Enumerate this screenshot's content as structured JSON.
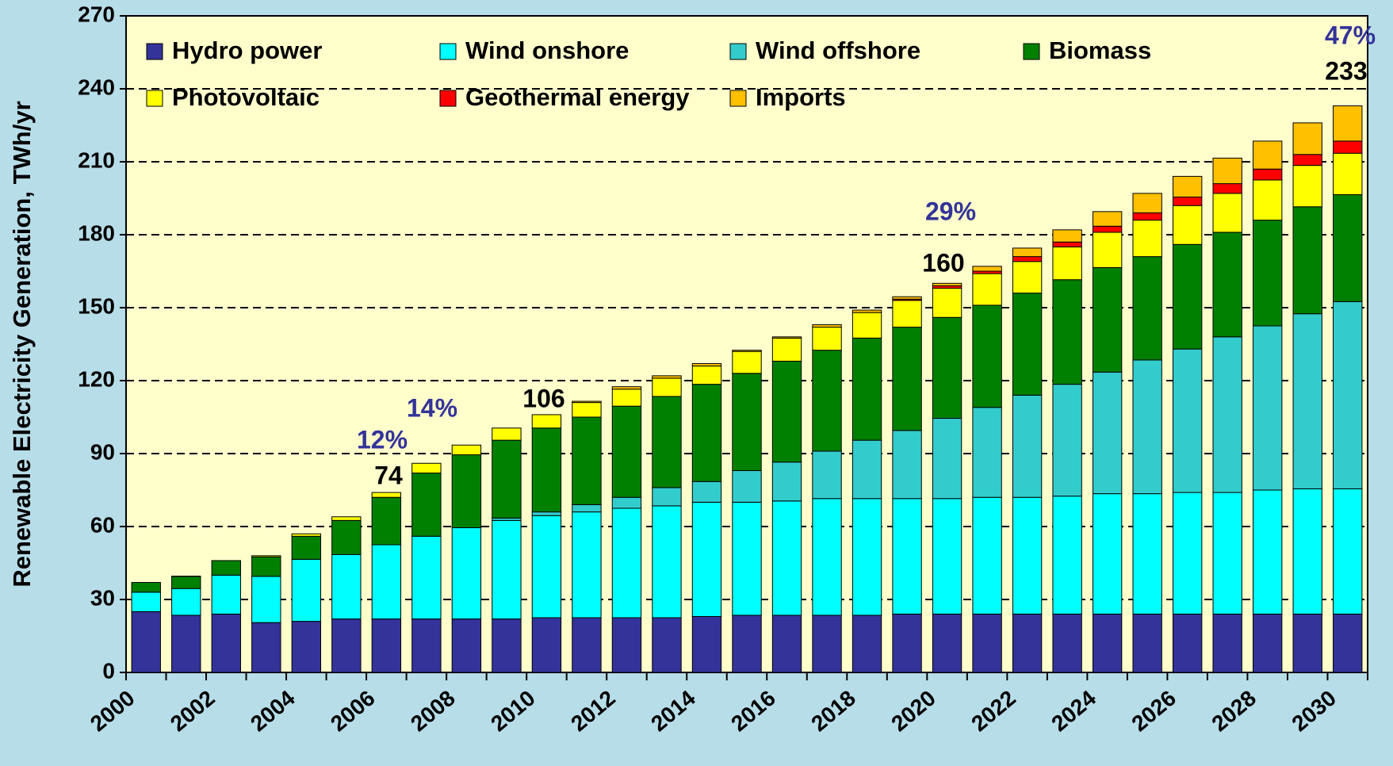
{
  "chart_data": {
    "type": "stacked_bar",
    "y_label": "Renewable Electricity Generation, TWh/yr",
    "categories": [
      "2000",
      null,
      "2002",
      null,
      "2004",
      null,
      "2006",
      null,
      "2008",
      null,
      "2010",
      null,
      "2012",
      null,
      "2014",
      null,
      "2016",
      null,
      "2018",
      null,
      "2020",
      null,
      "2022",
      null,
      "2024",
      null,
      "2026",
      null,
      "2028",
      null,
      "2030"
    ],
    "ylim": [
      0,
      270
    ],
    "yticks": [
      0,
      30,
      60,
      90,
      120,
      150,
      180,
      210,
      240,
      270
    ],
    "grid": true,
    "legend": "top-left",
    "series": [
      {
        "name": "Hydro power",
        "color": "#333399",
        "values": [
          25,
          23.5,
          24,
          20.5,
          21,
          22,
          22,
          22,
          22,
          22,
          22.5,
          22.5,
          22.5,
          22.5,
          23,
          23.5,
          23.5,
          23.5,
          23.5,
          24,
          24,
          24,
          24,
          24,
          24,
          24,
          24,
          24,
          24,
          24,
          24
        ]
      },
      {
        "name": "Wind onshore",
        "color": "#00ffff",
        "values": [
          8,
          11,
          16,
          19,
          25.5,
          26.5,
          30.5,
          34,
          37.5,
          40.5,
          42,
          43.5,
          45,
          46,
          47,
          46.5,
          47,
          48,
          48,
          47.5,
          47.5,
          48,
          48,
          48.5,
          49.5,
          49.5,
          50,
          50,
          51,
          51.5,
          51.5
        ]
      },
      {
        "name": "Wind offshore",
        "color": "#33cccc",
        "values": [
          0,
          0,
          0,
          0,
          0,
          0,
          0,
          0,
          0,
          1,
          1.5,
          3,
          4.5,
          7.5,
          8.5,
          13,
          16,
          19.5,
          24,
          28,
          33,
          37,
          42,
          46,
          50,
          55,
          59,
          64,
          67.5,
          72,
          77
        ]
      },
      {
        "name": "Biomass",
        "color": "#008000",
        "values": [
          4,
          5,
          6,
          8,
          9.5,
          14,
          19.5,
          26,
          30,
          32,
          34.5,
          36,
          37.5,
          37.5,
          40,
          40,
          41.5,
          41.5,
          42,
          42.5,
          41.5,
          42,
          42,
          43,
          43,
          42.5,
          43,
          43,
          43.5,
          44,
          44
        ]
      },
      {
        "name": "Photovoltaic",
        "color": "#ffff00",
        "values": [
          0,
          0.1,
          0,
          0.5,
          1,
          1.5,
          2,
          4,
          4,
          5,
          5.5,
          6,
          7,
          7.5,
          7.5,
          9,
          9.5,
          9.5,
          10.5,
          11,
          12,
          13,
          13,
          13.5,
          14.5,
          15,
          16,
          16,
          16.5,
          17,
          17
        ]
      },
      {
        "name": "Geothermal energy",
        "color": "#ff0000",
        "values": [
          0,
          0,
          0,
          0,
          0,
          0,
          0,
          0,
          0,
          0,
          0,
          0,
          0,
          0,
          0,
          0,
          0,
          0,
          0,
          0.5,
          1,
          1,
          2,
          2,
          2.5,
          3,
          3.5,
          4,
          4.5,
          4.5,
          5
        ]
      },
      {
        "name": "Imports",
        "color": "#ffc000",
        "values": [
          0,
          0,
          0,
          0,
          0,
          0,
          0,
          0,
          0,
          0,
          0,
          0.5,
          1,
          1,
          1,
          0.5,
          0.5,
          1,
          1,
          1,
          1,
          2,
          3.5,
          5,
          6,
          8,
          8.5,
          10.5,
          11.5,
          13,
          14.5
        ]
      }
    ],
    "annotations": [
      "74",
      "12%",
      "14%",
      "106",
      "160",
      "29%",
      "233",
      "47%"
    ]
  }
}
